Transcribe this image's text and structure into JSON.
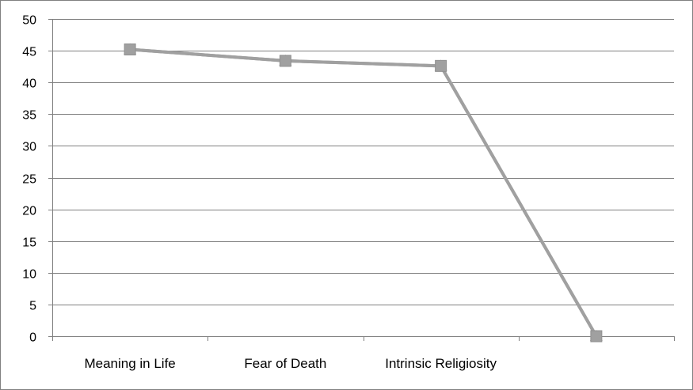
{
  "chart_data": {
    "type": "line",
    "title": "",
    "xlabel": "",
    "ylabel": "",
    "categories": [
      "Meaning in Life",
      "Fear of Death",
      "Intrinsic Religiosity",
      ""
    ],
    "ylim": [
      0,
      50
    ],
    "yticks": [
      0,
      5,
      10,
      15,
      20,
      25,
      30,
      35,
      40,
      45,
      50
    ],
    "grid": true,
    "legend": "none",
    "series": [
      {
        "values": [
          45.2,
          43.4,
          42.6,
          0
        ],
        "marker": "triangle",
        "color": "#a0a0a0"
      },
      {
        "values": [
          45.2,
          43.4,
          42.6,
          0
        ],
        "marker": "square",
        "color": "#a0a0a0"
      }
    ],
    "colors": {
      "line": "#a0a0a0",
      "grid": "#808080",
      "axis": "#808080"
    }
  }
}
